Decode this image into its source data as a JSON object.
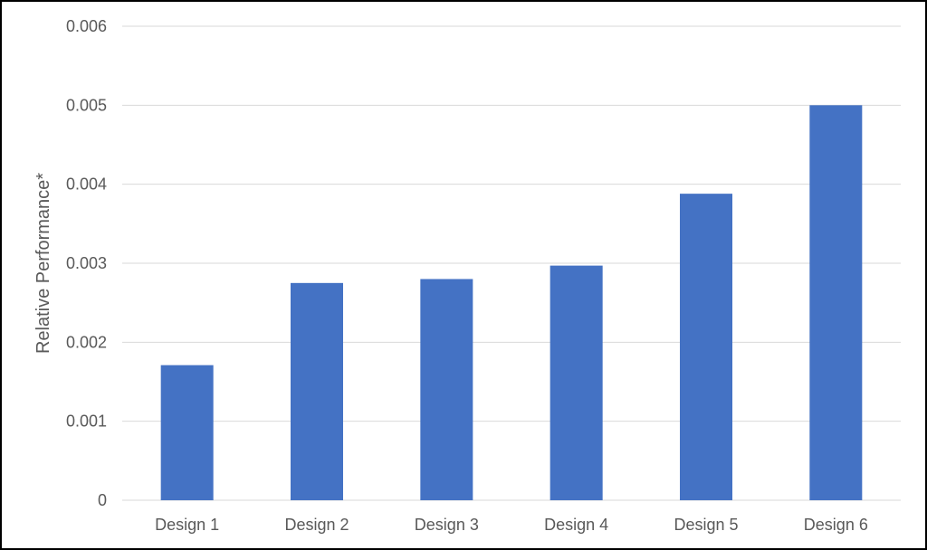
{
  "chart_data": {
    "type": "bar",
    "title": "",
    "xlabel": "",
    "ylabel": "Relative Performance*",
    "categories": [
      "Design 1",
      "Design 2",
      "Design 3",
      "Design 4",
      "Design 5",
      "Design 6"
    ],
    "values": [
      0.00171,
      0.00275,
      0.0028,
      0.00297,
      0.00388,
      0.005
    ],
    "ylim": [
      0,
      0.006
    ],
    "y_ticks": [
      "0",
      "0.001",
      "0.002",
      "0.003",
      "0.004",
      "0.005",
      "0.006"
    ],
    "grid": true,
    "legend": "none",
    "colors": {
      "bar": "#4472C4",
      "grid": "#D9D9D9",
      "text": "#595959",
      "frame": "#000000"
    }
  }
}
